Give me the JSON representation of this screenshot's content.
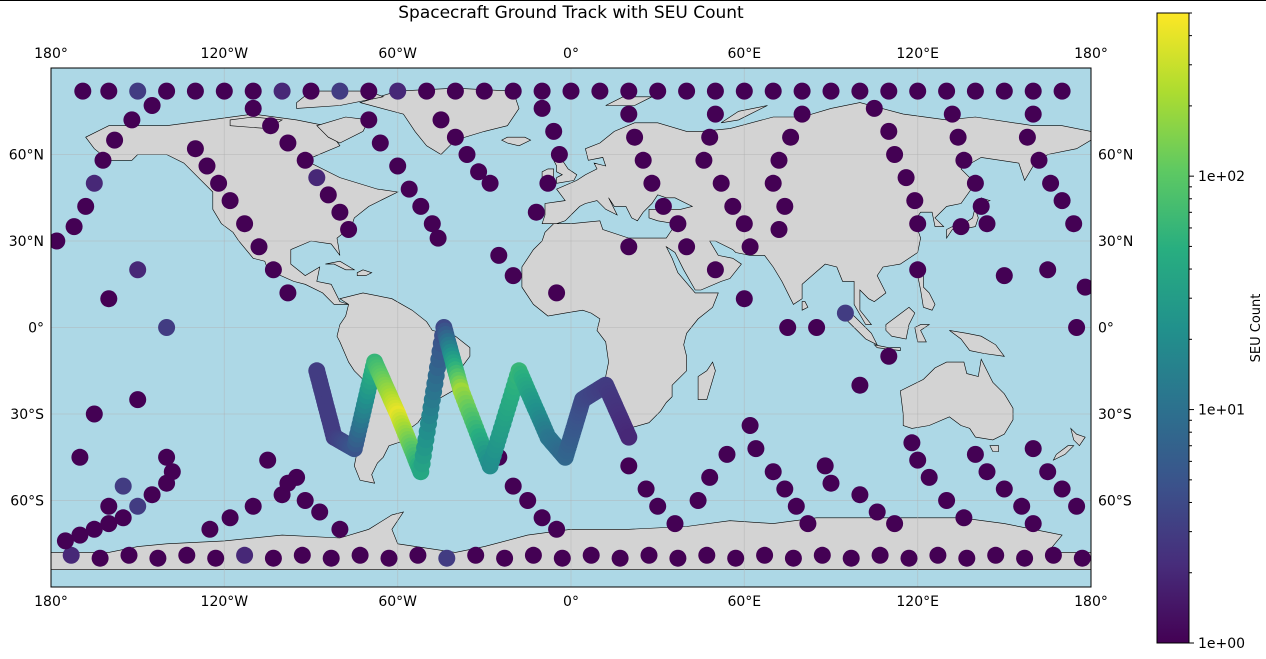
{
  "chart_data": {
    "type": "scatter",
    "title": "Spacecraft Ground Track with SEU Count",
    "projection": "PlateCarree",
    "xlim": [
      -180,
      180
    ],
    "ylim": [
      -90,
      90
    ],
    "extent_lat": [
      -90,
      90
    ],
    "grid": true,
    "x_tick_labels": [
      "180°",
      "120°W",
      "60°W",
      "0°",
      "60°E",
      "120°E",
      "180°"
    ],
    "x_tick_values": [
      -180,
      -120,
      -60,
      0,
      60,
      120,
      180
    ],
    "y_tick_labels": [
      "60°N",
      "30°N",
      "0°",
      "30°S",
      "60°S"
    ],
    "y_tick_values": [
      60,
      30,
      0,
      -30,
      -60
    ],
    "colormap": "viridis",
    "color_scale": "log",
    "colorbar": {
      "label": "SEU Count",
      "range": [
        1,
        500
      ],
      "tick_labels": [
        "1e+00",
        "1e+01",
        "1e+02"
      ],
      "tick_values": [
        1,
        10,
        100
      ]
    },
    "colors": {
      "ocean": "#add8e6",
      "land": "#d3d3d3",
      "coastline": "#000000"
    },
    "series": [
      {
        "points": [
          [
            -169,
            82
          ],
          [
            -160,
            82
          ],
          [
            -150,
            82
          ],
          [
            -140,
            82
          ],
          [
            -130,
            82
          ],
          [
            -120,
            82
          ],
          [
            -110,
            82
          ],
          [
            -100,
            82
          ],
          [
            -90,
            82
          ],
          [
            -80,
            82
          ],
          [
            -70,
            82
          ],
          [
            -60,
            82
          ],
          [
            -50,
            82
          ],
          [
            -40,
            82
          ],
          [
            -30,
            82
          ],
          [
            -20,
            82
          ],
          [
            -10,
            82
          ],
          [
            0,
            82
          ],
          [
            10,
            82
          ],
          [
            20,
            82
          ],
          [
            30,
            82
          ],
          [
            40,
            82
          ],
          [
            50,
            82
          ],
          [
            60,
            82
          ],
          [
            70,
            82
          ],
          [
            80,
            82
          ],
          [
            90,
            82
          ],
          [
            100,
            82
          ],
          [
            110,
            82
          ],
          [
            120,
            82
          ],
          [
            130,
            82
          ],
          [
            140,
            82
          ],
          [
            150,
            82
          ],
          [
            160,
            82
          ],
          [
            170,
            82
          ],
          [
            -173,
            -79
          ],
          [
            -163,
            -80
          ],
          [
            -153,
            -79
          ],
          [
            -143,
            -80
          ],
          [
            -133,
            -79
          ],
          [
            -123,
            -80
          ],
          [
            -113,
            -79
          ],
          [
            -103,
            -80
          ],
          [
            -93,
            -79
          ],
          [
            -83,
            -80
          ],
          [
            -73,
            -79
          ],
          [
            -63,
            -80
          ],
          [
            -53,
            -79
          ],
          [
            -43,
            -80
          ],
          [
            -33,
            -79
          ],
          [
            -23,
            -80
          ],
          [
            -13,
            -79
          ],
          [
            -3,
            -80
          ],
          [
            7,
            -79
          ],
          [
            17,
            -80
          ],
          [
            27,
            -79
          ],
          [
            37,
            -80
          ],
          [
            47,
            -79
          ],
          [
            57,
            -80
          ],
          [
            67,
            -79
          ],
          [
            77,
            -80
          ],
          [
            87,
            -79
          ],
          [
            97,
            -80
          ],
          [
            107,
            -79
          ],
          [
            117,
            -80
          ],
          [
            127,
            -79
          ],
          [
            137,
            -80
          ],
          [
            147,
            -79
          ],
          [
            157,
            -80
          ],
          [
            167,
            -79
          ],
          [
            177,
            -80
          ],
          [
            -175,
            -74
          ],
          [
            -170,
            -72
          ],
          [
            -165,
            -70
          ],
          [
            -160,
            -68
          ],
          [
            -155,
            -66
          ],
          [
            -150,
            -62
          ],
          [
            -145,
            -58
          ],
          [
            -140,
            -54
          ],
          [
            -138,
            -50
          ],
          [
            -140,
            -45
          ],
          [
            -125,
            -70
          ],
          [
            -118,
            -66
          ],
          [
            -110,
            -62
          ],
          [
            -100,
            -58
          ],
          [
            -95,
            -52
          ],
          [
            -178,
            30
          ],
          [
            -172,
            35
          ],
          [
            -168,
            42
          ],
          [
            -165,
            50
          ],
          [
            -162,
            58
          ],
          [
            -158,
            65
          ],
          [
            -152,
            72
          ],
          [
            -145,
            77
          ],
          [
            -130,
            62
          ],
          [
            -126,
            56
          ],
          [
            -122,
            50
          ],
          [
            -118,
            44
          ],
          [
            -113,
            36
          ],
          [
            -108,
            28
          ],
          [
            -103,
            20
          ],
          [
            -98,
            12
          ],
          [
            -110,
            76
          ],
          [
            -104,
            70
          ],
          [
            -98,
            64
          ],
          [
            -92,
            58
          ],
          [
            -88,
            52
          ],
          [
            -84,
            46
          ],
          [
            -80,
            40
          ],
          [
            -77,
            34
          ],
          [
            -70,
            72
          ],
          [
            -66,
            64
          ],
          [
            -60,
            56
          ],
          [
            -56,
            48
          ],
          [
            -52,
            42
          ],
          [
            -48,
            36
          ],
          [
            -46,
            31
          ],
          [
            -45,
            72
          ],
          [
            -40,
            66
          ],
          [
            -36,
            60
          ],
          [
            -32,
            54
          ],
          [
            -28,
            50
          ],
          [
            -10,
            76
          ],
          [
            -6,
            68
          ],
          [
            -4,
            60
          ],
          [
            -8,
            50
          ],
          [
            -12,
            40
          ],
          [
            20,
            74
          ],
          [
            22,
            66
          ],
          [
            25,
            58
          ],
          [
            28,
            50
          ],
          [
            32,
            42
          ],
          [
            37,
            36
          ],
          [
            50,
            74
          ],
          [
            48,
            66
          ],
          [
            46,
            58
          ],
          [
            52,
            50
          ],
          [
            56,
            42
          ],
          [
            60,
            36
          ],
          [
            62,
            28
          ],
          [
            80,
            74
          ],
          [
            76,
            66
          ],
          [
            72,
            58
          ],
          [
            70,
            50
          ],
          [
            74,
            42
          ],
          [
            72,
            34
          ],
          [
            105,
            76
          ],
          [
            110,
            68
          ],
          [
            112,
            60
          ],
          [
            116,
            52
          ],
          [
            119,
            44
          ],
          [
            120,
            36
          ],
          [
            132,
            74
          ],
          [
            134,
            66
          ],
          [
            136,
            58
          ],
          [
            140,
            50
          ],
          [
            142,
            42
          ],
          [
            144,
            36
          ],
          [
            160,
            74
          ],
          [
            158,
            66
          ],
          [
            162,
            58
          ],
          [
            166,
            50
          ],
          [
            170,
            44
          ],
          [
            174,
            36
          ],
          [
            -165,
            -30
          ],
          [
            -150,
            -25
          ],
          [
            -170,
            -45
          ],
          [
            -155,
            -55
          ],
          [
            -160,
            -62
          ],
          [
            -105,
            -46
          ],
          [
            -98,
            -54
          ],
          [
            -92,
            -60
          ],
          [
            -87,
            -64
          ],
          [
            -80,
            -70
          ],
          [
            -25,
            -45
          ],
          [
            -20,
            -55
          ],
          [
            -15,
            -60
          ],
          [
            -10,
            -66
          ],
          [
            -5,
            -70
          ],
          [
            20,
            -48
          ],
          [
            26,
            -56
          ],
          [
            30,
            -62
          ],
          [
            36,
            -68
          ],
          [
            44,
            -60
          ],
          [
            48,
            -52
          ],
          [
            54,
            -44
          ],
          [
            62,
            -34
          ],
          [
            64,
            -42
          ],
          [
            70,
            -50
          ],
          [
            74,
            -56
          ],
          [
            78,
            -62
          ],
          [
            82,
            -68
          ],
          [
            88,
            -48
          ],
          [
            90,
            -54
          ],
          [
            100,
            -58
          ],
          [
            106,
            -64
          ],
          [
            112,
            -68
          ],
          [
            118,
            -40
          ],
          [
            120,
            -46
          ],
          [
            124,
            -52
          ],
          [
            130,
            -60
          ],
          [
            136,
            -66
          ],
          [
            140,
            -44
          ],
          [
            144,
            -50
          ],
          [
            150,
            -56
          ],
          [
            156,
            -62
          ],
          [
            160,
            -68
          ],
          [
            160,
            -42
          ],
          [
            165,
            -50
          ],
          [
            170,
            -56
          ],
          [
            175,
            -62
          ],
          [
            -140,
            0
          ],
          [
            -160,
            10
          ],
          [
            -150,
            20
          ],
          [
            -25,
            25
          ],
          [
            -20,
            18
          ],
          [
            -5,
            12
          ],
          [
            20,
            28
          ],
          [
            40,
            28
          ],
          [
            50,
            20
          ],
          [
            60,
            10
          ],
          [
            75,
            0
          ],
          [
            85,
            0
          ],
          [
            95,
            5
          ],
          [
            100,
            -20
          ],
          [
            110,
            -10
          ],
          [
            120,
            20
          ],
          [
            135,
            35
          ],
          [
            150,
            18
          ],
          [
            165,
            20
          ],
          [
            175,
            0
          ],
          [
            178,
            14
          ]
        ],
        "seu_count": [
          1,
          1,
          3,
          1,
          1,
          1,
          1,
          2,
          1,
          3,
          1,
          2,
          1,
          1,
          1,
          1,
          1,
          1,
          1,
          1,
          1,
          1,
          1,
          1,
          1,
          1,
          1,
          1,
          1,
          1,
          1,
          1,
          1,
          1,
          1,
          2,
          1,
          1,
          1,
          1,
          1,
          2,
          1,
          1,
          1,
          1,
          1,
          1,
          3,
          1,
          1,
          1,
          1,
          1,
          1,
          1,
          1,
          1,
          1,
          1,
          1,
          1,
          1,
          1,
          1,
          1,
          1,
          1,
          1,
          1,
          1,
          1,
          1,
          1,
          1,
          1,
          3,
          1,
          1,
          1,
          1,
          1,
          1,
          1,
          1,
          1,
          1,
          1,
          1,
          2,
          1,
          1,
          1,
          1,
          1,
          1,
          1,
          1,
          1,
          1,
          1,
          1,
          1,
          1,
          1,
          1,
          2,
          1,
          1,
          1,
          1,
          1,
          1,
          1,
          1,
          1,
          1,
          1,
          1,
          1,
          1,
          1,
          1,
          1,
          1,
          1,
          1,
          1,
          1,
          1,
          1,
          1,
          1,
          1,
          1,
          1,
          1,
          1,
          1,
          1,
          1,
          1,
          1,
          1,
          1,
          1,
          1,
          1,
          1,
          1,
          1,
          1,
          1,
          1,
          1,
          1,
          1,
          1,
          1,
          1,
          1,
          1,
          1,
          1,
          1,
          1,
          1,
          3,
          1,
          1,
          1,
          1,
          1,
          1,
          1,
          1,
          1,
          1,
          1,
          1,
          1,
          1,
          1,
          1,
          1,
          1,
          1,
          1,
          1,
          1,
          1,
          1,
          1,
          1,
          1,
          1,
          1,
          1,
          1,
          1,
          1,
          1,
          1,
          1,
          1,
          1,
          1,
          1,
          1,
          1,
          1,
          3,
          1,
          2,
          1,
          1,
          1,
          1,
          1,
          1,
          1,
          1,
          1,
          3,
          1,
          1,
          1,
          1,
          1,
          1,
          1,
          1,
          1,
          1,
          1,
          3
        ]
      },
      {
        "name": "",
        "description_key": "south_atlantic_anomaly",
        "track_vertices": [
          [
            -88,
            -15
          ],
          [
            -82,
            -38
          ],
          [
            -75,
            -42
          ],
          [
            -68,
            -12
          ],
          [
            -60,
            -30
          ],
          [
            -52,
            -50
          ],
          [
            -44,
            0
          ],
          [
            -38,
            -22
          ],
          [
            -28,
            -48
          ],
          [
            -18,
            -15
          ],
          [
            -8,
            -38
          ],
          [
            -2,
            -45
          ],
          [
            4,
            -25
          ],
          [
            12,
            -20
          ],
          [
            20,
            -38
          ]
        ],
        "vertex_seu_count": [
          3,
          3,
          5,
          60,
          400,
          40,
          4,
          200,
          20,
          60,
          12,
          8,
          4,
          3,
          2
        ]
      }
    ]
  }
}
